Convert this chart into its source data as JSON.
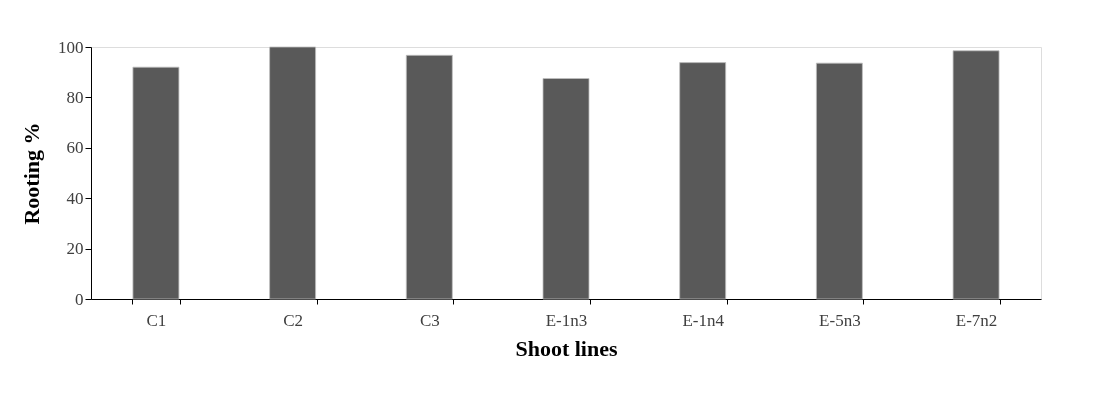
{
  "chart_data": {
    "type": "bar",
    "xlabel": "Shoot lines",
    "ylabel": "Rooting %",
    "categories": [
      "C1",
      "C2",
      "C3",
      "E-1n3",
      "E-1n4",
      "E-5n3",
      "E-7n2"
    ],
    "values": [
      92,
      100,
      96.7,
      87.5,
      93.8,
      93.6,
      98.5
    ],
    "color": "#595959",
    "ylim": [
      0,
      100
    ],
    "yticks": [
      0,
      20,
      40,
      60,
      80,
      100
    ],
    "grid": false
  }
}
